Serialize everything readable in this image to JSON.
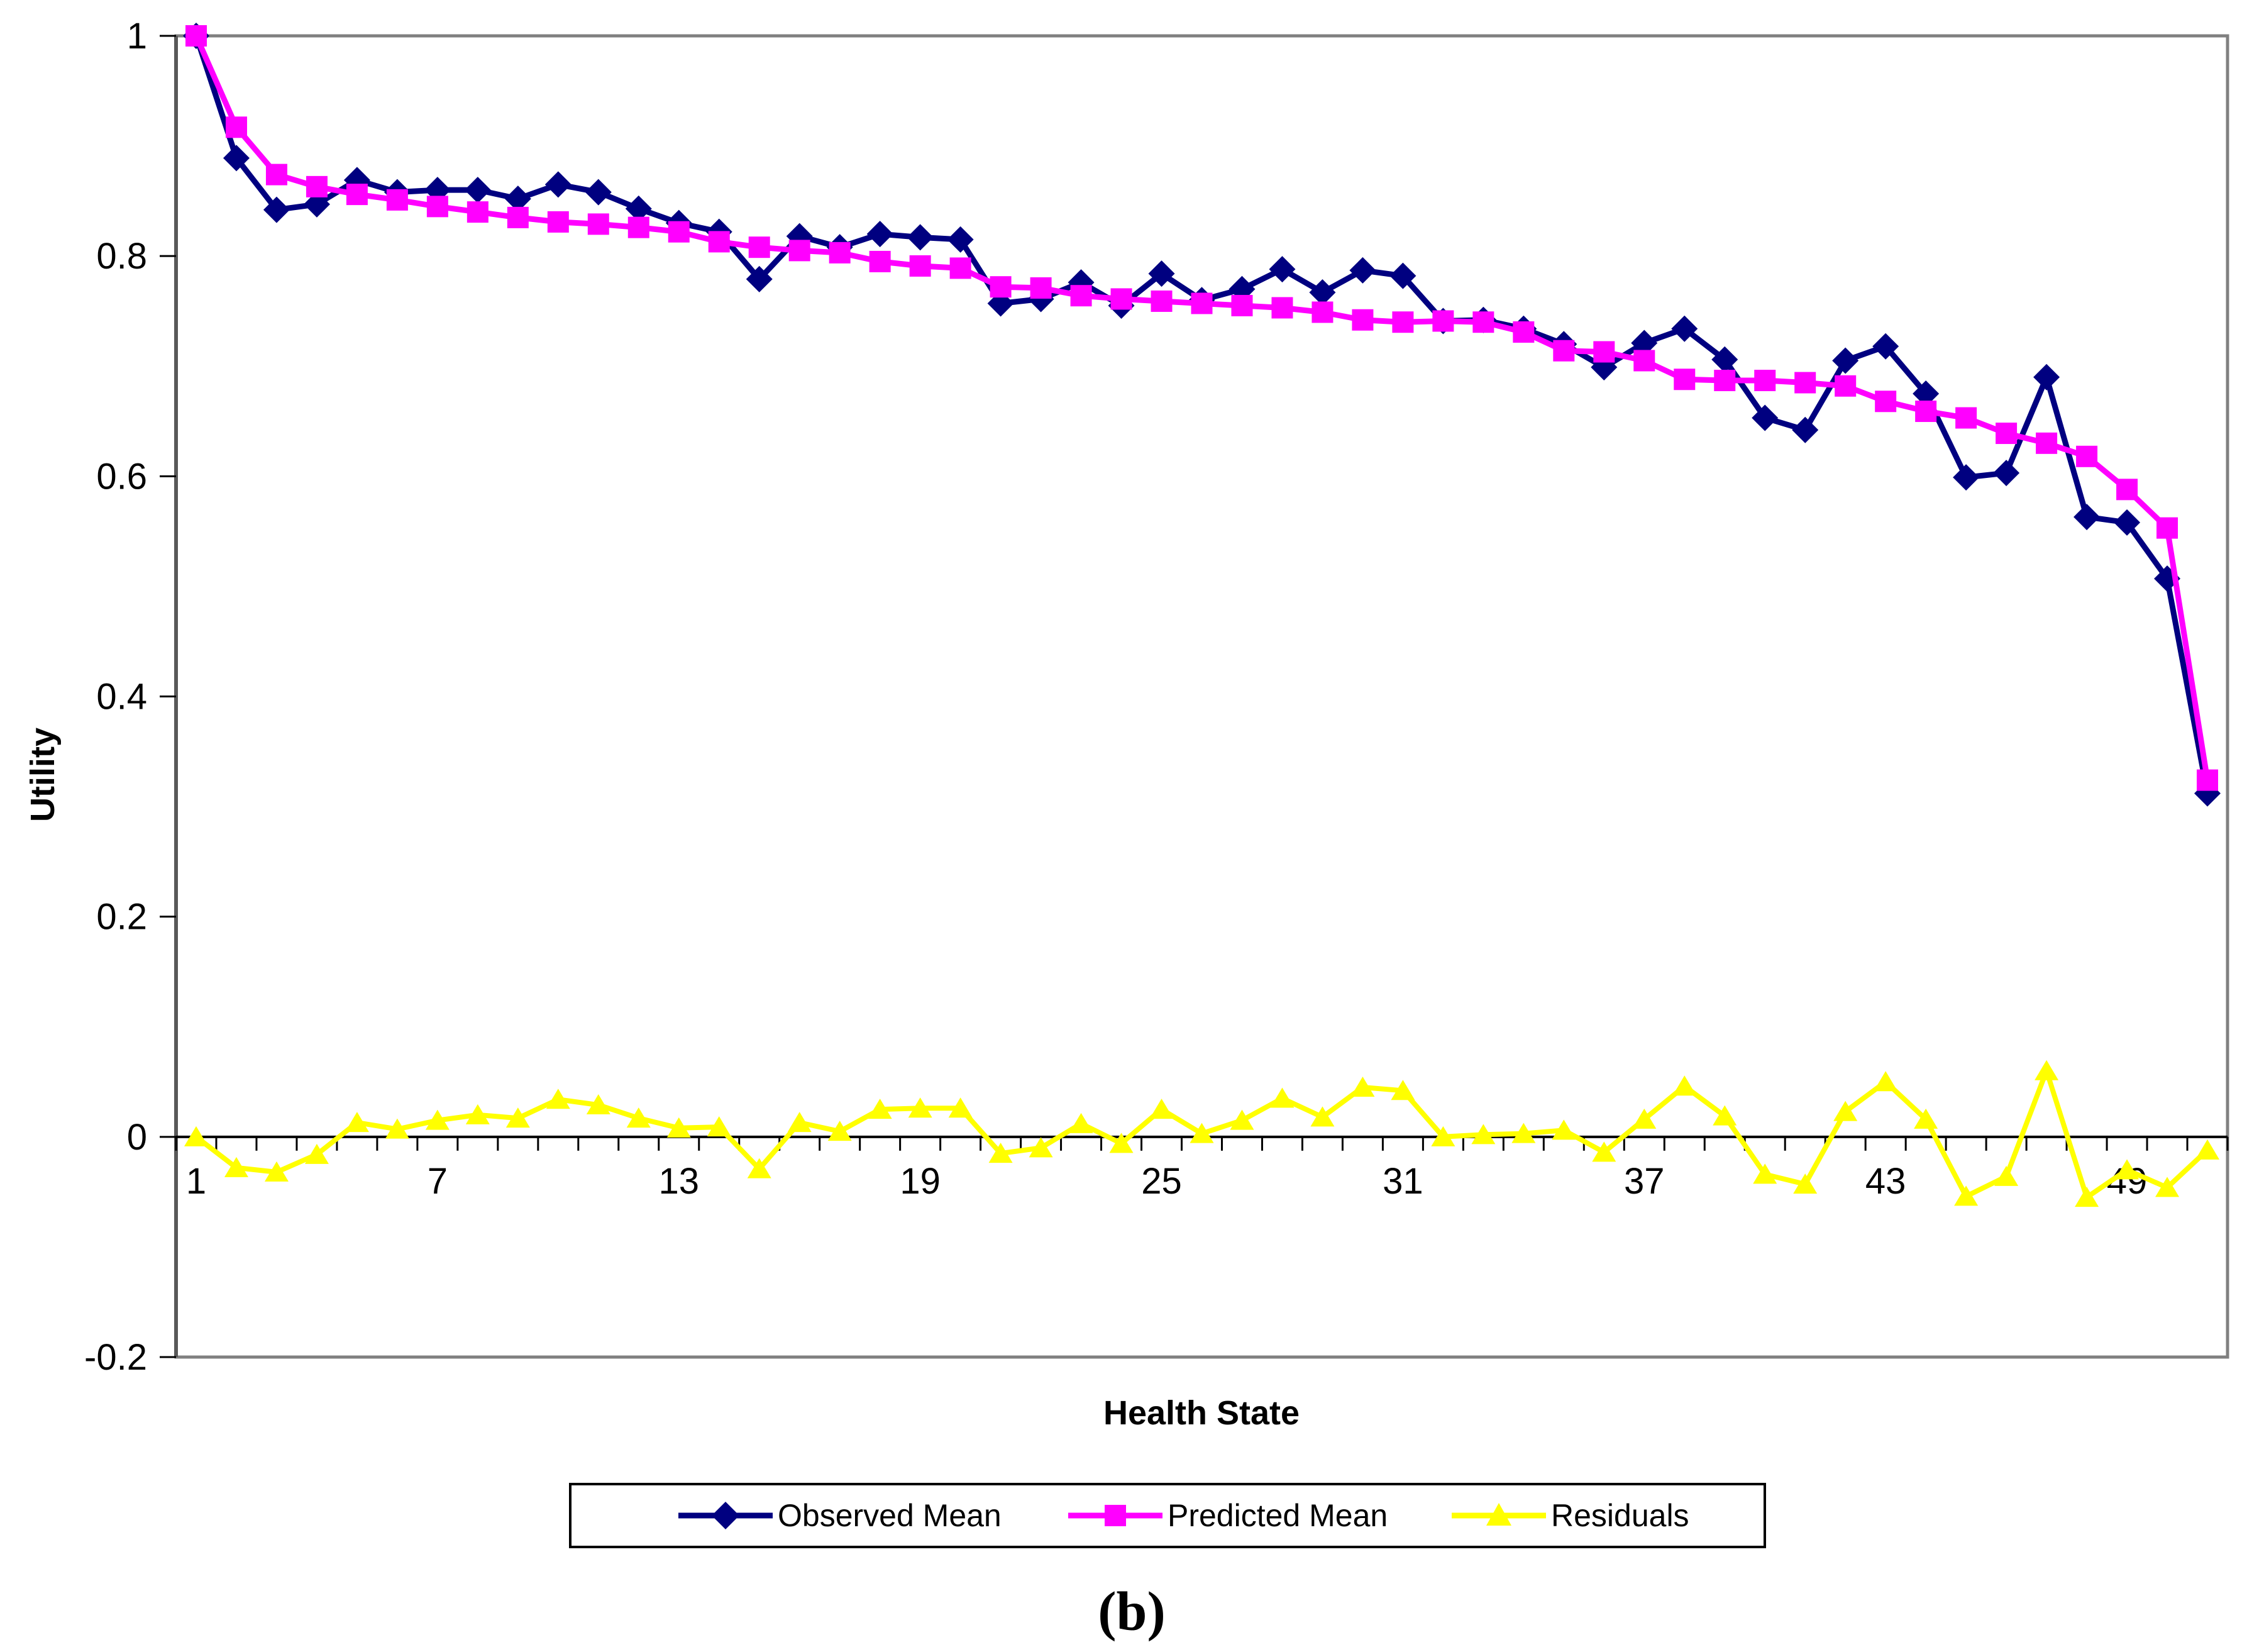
{
  "figure": {
    "caption": "(b)"
  },
  "chart_data": {
    "type": "line",
    "title": "",
    "xlabel": "Health State",
    "ylabel": "Utility",
    "ylim": [
      -0.2,
      1.0
    ],
    "grid": false,
    "legend_position": "bottom",
    "x": [
      1,
      2,
      3,
      4,
      5,
      6,
      7,
      8,
      9,
      10,
      11,
      12,
      13,
      14,
      15,
      16,
      17,
      18,
      19,
      20,
      21,
      22,
      23,
      24,
      25,
      26,
      27,
      28,
      29,
      30,
      31,
      32,
      33,
      34,
      35,
      36,
      37,
      38,
      39,
      40,
      41,
      42,
      43,
      44,
      45,
      46,
      47,
      48,
      49,
      50,
      51
    ],
    "x_tick_labels": [
      "1",
      "7",
      "13",
      "19",
      "25",
      "31",
      "37",
      "43",
      "49"
    ],
    "x_tick_values": [
      1,
      7,
      13,
      19,
      25,
      31,
      37,
      43,
      49
    ],
    "y_tick_labels": [
      "1",
      "0.8",
      "0.6",
      "0.4",
      "0.2",
      "0",
      "-0.2"
    ],
    "y_tick_values": [
      1.0,
      0.8,
      0.6,
      0.4,
      0.2,
      0.0,
      -0.2
    ],
    "series": [
      {
        "name": "Observed Mean",
        "marker": "diamond",
        "color": "#000080",
        "values": [
          1.0,
          0.889,
          0.842,
          0.847,
          0.869,
          0.858,
          0.86,
          0.86,
          0.852,
          0.865,
          0.858,
          0.843,
          0.83,
          0.822,
          0.779,
          0.818,
          0.808,
          0.82,
          0.817,
          0.815,
          0.757,
          0.761,
          0.776,
          0.755,
          0.784,
          0.76,
          0.77,
          0.788,
          0.767,
          0.787,
          0.782,
          0.741,
          0.742,
          0.734,
          0.72,
          0.699,
          0.721,
          0.734,
          0.706,
          0.653,
          0.642,
          0.705,
          0.718,
          0.675,
          0.599,
          0.603,
          0.69,
          0.563,
          0.558,
          0.507,
          0.312
        ]
      },
      {
        "name": "Predicted Mean",
        "marker": "square",
        "color": "#FF00FF",
        "values": [
          1.0,
          0.917,
          0.874,
          0.863,
          0.856,
          0.851,
          0.845,
          0.84,
          0.835,
          0.831,
          0.829,
          0.826,
          0.822,
          0.813,
          0.808,
          0.805,
          0.803,
          0.795,
          0.791,
          0.789,
          0.772,
          0.771,
          0.764,
          0.761,
          0.759,
          0.757,
          0.755,
          0.753,
          0.749,
          0.742,
          0.74,
          0.741,
          0.74,
          0.731,
          0.714,
          0.713,
          0.705,
          0.688,
          0.687,
          0.687,
          0.685,
          0.682,
          0.668,
          0.659,
          0.653,
          0.639,
          0.63,
          0.618,
          0.588,
          0.553,
          0.324
        ]
      },
      {
        "name": "Residuals",
        "marker": "triangle",
        "color": "#FFFF00",
        "values": [
          0.0,
          -0.028,
          -0.032,
          -0.016,
          0.013,
          0.007,
          0.015,
          0.02,
          0.017,
          0.034,
          0.029,
          0.017,
          0.008,
          0.009,
          -0.029,
          0.013,
          0.005,
          0.025,
          0.026,
          0.026,
          -0.015,
          -0.01,
          0.012,
          -0.006,
          0.025,
          0.003,
          0.015,
          0.035,
          0.018,
          0.045,
          0.042,
          0.0,
          0.002,
          0.003,
          0.006,
          -0.014,
          0.016,
          0.046,
          0.019,
          -0.034,
          -0.043,
          0.023,
          0.05,
          0.016,
          -0.054,
          -0.036,
          0.06,
          -0.055,
          -0.03,
          -0.046,
          -0.012
        ]
      }
    ],
    "colors": {
      "plot_border": "#808080",
      "zero_axis": "#000000",
      "text": "#000000",
      "background": "#ffffff"
    }
  }
}
